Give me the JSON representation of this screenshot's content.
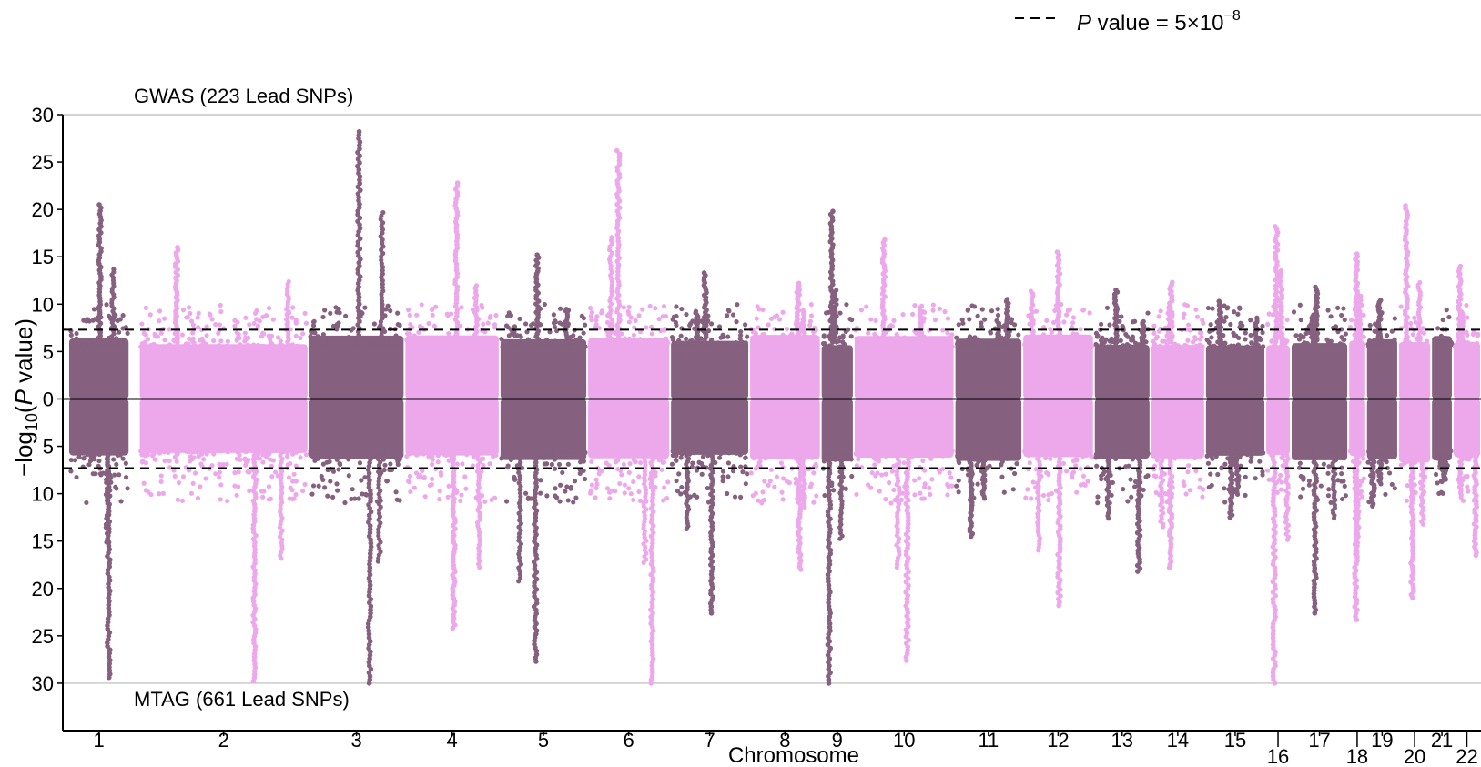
{
  "chart_data": {
    "type": "scatter",
    "subtype": "miami-manhattan",
    "xlabel": "Chromosome",
    "ylabel_prefix": "−log",
    "ylabel_sub": "10",
    "ylabel_open": "(",
    "ylabel_italic": "P",
    "ylabel_rest": " value)",
    "top_label": "GWAS (223 Lead SNPs)",
    "bottom_label": "MTAG (661 Lead SNPs)",
    "legend": {
      "position": "top-right",
      "label_italic": "P",
      "label_text": " value = 5×10",
      "label_sup": "−8"
    },
    "ylim": [
      -35,
      30
    ],
    "y_ticks": [
      30,
      25,
      20,
      15,
      10,
      5,
      0,
      5,
      10,
      15,
      20,
      25,
      30
    ],
    "y_tick_values": [
      30,
      25,
      20,
      15,
      10,
      5,
      0,
      -5,
      -10,
      -15,
      -20,
      -25,
      -30
    ],
    "threshold": 7.3,
    "colors": {
      "dark": "#85607F",
      "light": "#EDA8EC"
    },
    "chromosomes": [
      {
        "label": "1",
        "start": 0,
        "end": 65,
        "top": 20.5,
        "bottom": 29.4,
        "row": 1
      },
      {
        "label": "2",
        "start": 75,
        "end": 255,
        "top": 16.0,
        "bottom": 29.8,
        "row": 1
      },
      {
        "label": "3",
        "start": 255,
        "end": 357,
        "top": 28.2,
        "bottom": 30.0,
        "row": 1
      },
      {
        "label": "4",
        "start": 357,
        "end": 458,
        "top": 22.8,
        "bottom": 24.2,
        "row": 1
      },
      {
        "label": "5",
        "start": 458,
        "end": 551,
        "top": 15.2,
        "bottom": 27.7,
        "row": 1
      },
      {
        "label": "6",
        "start": 551,
        "end": 639,
        "top": 26.2,
        "bottom": 30.0,
        "row": 1
      },
      {
        "label": "7",
        "start": 639,
        "end": 723,
        "top": 13.3,
        "bottom": 22.6,
        "row": 1
      },
      {
        "label": "8",
        "start": 723,
        "end": 799,
        "top": 12.2,
        "bottom": 18.0,
        "row": 1
      },
      {
        "label": "9",
        "start": 799,
        "end": 834,
        "top": 19.8,
        "bottom": 30.0,
        "row": 1
      },
      {
        "label": "10",
        "start": 834,
        "end": 941,
        "top": 16.8,
        "bottom": 27.6,
        "row": 1
      },
      {
        "label": "11",
        "start": 941,
        "end": 1013,
        "top": 10.5,
        "bottom": 14.5,
        "row": 1
      },
      {
        "label": "12",
        "start": 1013,
        "end": 1089,
        "top": 15.5,
        "bottom": 21.8,
        "row": 1
      },
      {
        "label": "13",
        "start": 1089,
        "end": 1149,
        "top": 11.5,
        "bottom": 18.2,
        "row": 1
      },
      {
        "label": "14",
        "start": 1149,
        "end": 1207,
        "top": 12.3,
        "bottom": 17.8,
        "row": 1
      },
      {
        "label": "15",
        "start": 1207,
        "end": 1271,
        "top": 10.3,
        "bottom": 12.5,
        "row": 1
      },
      {
        "label": "16",
        "start": 1271,
        "end": 1298,
        "top": 18.2,
        "bottom": 30.0,
        "row": 2
      },
      {
        "label": "17",
        "start": 1298,
        "end": 1359,
        "top": 11.8,
        "bottom": 22.6,
        "row": 1
      },
      {
        "label": "18",
        "start": 1359,
        "end": 1378,
        "top": 15.3,
        "bottom": 23.3,
        "row": 2
      },
      {
        "label": "19",
        "start": 1378,
        "end": 1412,
        "top": 10.4,
        "bottom": 11.3,
        "row": 1
      },
      {
        "label": "20",
        "start": 1412,
        "end": 1447,
        "top": 20.4,
        "bottom": 21.0,
        "row": 2
      },
      {
        "label": "21",
        "start": 1447,
        "end": 1470,
        "top": 5.5,
        "bottom": 8.5,
        "row": 1
      },
      {
        "label": "22",
        "start": 1470,
        "end": 1500,
        "top": 14.0,
        "bottom": 16.5,
        "row": 2
      }
    ]
  }
}
